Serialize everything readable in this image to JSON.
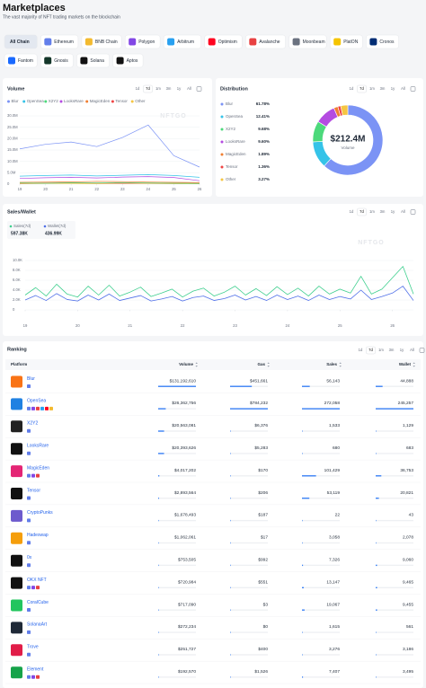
{
  "header": {
    "title": "Marketplaces",
    "subtitle": "The vast majority of NFT trading markets on the blockchain"
  },
  "chains": [
    "All Chain",
    "Ethereum",
    "BNB Chain",
    "Polygon",
    "Arbitrum",
    "Optimism",
    "Avalanche",
    "Moonbeam",
    "PlatON",
    "Cronos",
    "Fantom",
    "Gnosis",
    "Solana",
    "Aptos"
  ],
  "time_ranges": [
    "1d",
    "7d",
    "1m",
    "3m",
    "1y",
    "All"
  ],
  "watermark": "NFTGO",
  "chart_data": [
    {
      "type": "line",
      "title": "Volume",
      "x": [
        19,
        20,
        21,
        22,
        23,
        24,
        25,
        26
      ],
      "xlim": [
        19,
        26
      ],
      "xticks": [
        19,
        20,
        21,
        22,
        23,
        24,
        25,
        26
      ],
      "ylim": [
        0,
        30000000
      ],
      "yticks": [
        0,
        {
          "value": 5000000,
          "label": "5.0M"
        },
        {
          "value": 10000000,
          "label": "10.0M"
        },
        {
          "value": 15000000,
          "label": "15.0M"
        },
        {
          "value": 20000000,
          "label": "20.0M"
        },
        {
          "value": 25000000,
          "label": "25.0M"
        },
        {
          "value": 30000000,
          "label": "30.0M"
        }
      ],
      "series": [
        {
          "name": "Blur",
          "color": "#7b93f5",
          "values": [
            15500000,
            17500000,
            18500000,
            16500000,
            20500000,
            26000000,
            12500000,
            7500000
          ]
        },
        {
          "name": "OpenSea",
          "color": "#35c3e8",
          "values": [
            3500000,
            3800000,
            4000000,
            3600000,
            3900000,
            4200000,
            3800000,
            3000000
          ]
        },
        {
          "name": "X2Y2",
          "color": "#4cd97b",
          "values": [
            500000,
            400000,
            600000,
            500000,
            700000,
            500000,
            400000,
            300000
          ]
        },
        {
          "name": "LooksRare",
          "color": "#b44be1",
          "values": [
            2500000,
            2800000,
            3000000,
            2700000,
            3100000,
            3300000,
            2900000,
            1500000
          ]
        },
        {
          "name": "MagicEden",
          "color": "#f07f32",
          "values": [
            800000,
            900000,
            1000000,
            1200000,
            1100000,
            900000,
            800000,
            700000
          ]
        },
        {
          "name": "Tensor",
          "color": "#ef4444",
          "values": [
            400000,
            500000,
            600000,
            500000,
            400000,
            500000,
            400000,
            300000
          ]
        },
        {
          "name": "Other",
          "color": "#f5c542",
          "values": [
            200000,
            300000,
            300000,
            200000,
            300000,
            300000,
            200000,
            200000
          ]
        }
      ]
    },
    {
      "type": "pie",
      "title": "Distribution",
      "categories": [
        "Blur",
        "OpenSea",
        "X2Y2",
        "LooksRare",
        "MagicEden",
        "Tensor",
        "Other"
      ],
      "values": [
        61.78,
        12.41,
        9.68,
        9.6,
        1.89,
        1.36,
        3.27
      ],
      "value_labels": [
        "61.78%",
        "12.41%",
        "9.68%",
        "9.60%",
        "1.89%",
        "1.36%",
        "3.27%"
      ],
      "colors": [
        "#7b93f5",
        "#35c3e8",
        "#4cd97b",
        "#b44be1",
        "#f07f32",
        "#ef4444",
        "#f5c542"
      ],
      "center_value": "$212.4M",
      "center_label": "Volume"
    },
    {
      "type": "line",
      "title": "Sales/Wallet",
      "x": [
        19,
        19.2,
        19.4,
        19.6,
        19.8,
        20,
        20.2,
        20.4,
        20.6,
        20.8,
        21,
        21.2,
        21.4,
        21.6,
        21.8,
        22,
        22.2,
        22.4,
        22.6,
        22.8,
        23,
        23.2,
        23.4,
        23.6,
        23.8,
        24,
        24.2,
        24.4,
        24.6,
        24.8,
        25,
        25.2,
        25.4,
        25.6,
        25.8,
        26,
        26.2,
        26.4
      ],
      "xlim": [
        19,
        26.4
      ],
      "xticks": [
        19,
        20,
        21,
        22,
        23,
        24,
        25,
        26
      ],
      "ylim": [
        0,
        10000
      ],
      "yticks": [
        0,
        {
          "value": 2000,
          "label": "2.0K"
        },
        {
          "value": 4000,
          "label": "4.0K"
        },
        {
          "value": 6000,
          "label": "6.0K"
        },
        {
          "value": 8000,
          "label": "8.0K"
        },
        {
          "value": 10000,
          "label": "10.0K"
        }
      ],
      "series": [
        {
          "name": "Sales(7d)",
          "total": "597.38K",
          "color": "#3ecf8e",
          "values": [
            3000,
            4500,
            2800,
            5200,
            3200,
            2600,
            4800,
            3000,
            5000,
            2800,
            3600,
            4600,
            2700,
            3400,
            4200,
            2600,
            3800,
            4400,
            2800,
            3600,
            4800,
            3000,
            4300,
            2900,
            4700,
            3100,
            4400,
            2800,
            4800,
            3200,
            4200,
            3400,
            6800,
            3200,
            4200,
            6500,
            8800,
            3200
          ]
        },
        {
          "name": "Wallet(7d)",
          "total": "436.99K",
          "color": "#4f6fe8",
          "values": [
            2000,
            2900,
            1900,
            3300,
            2100,
            1800,
            3000,
            2000,
            3200,
            1900,
            2400,
            2900,
            1800,
            2200,
            2700,
            1800,
            2500,
            2800,
            1900,
            2300,
            3000,
            2000,
            2700,
            1900,
            3000,
            2100,
            2800,
            1900,
            3000,
            2100,
            2700,
            2200,
            4000,
            2100,
            2700,
            3400,
            4800,
            1900
          ]
        }
      ]
    }
  ],
  "ranking": {
    "title": "Ranking",
    "columns": [
      "Platform",
      "Volume",
      "Gas",
      "Sales",
      "Wallet"
    ],
    "rows": [
      {
        "name": "Blur",
        "volume": {
          "value": 131192610,
          "label": "$131,192,610"
        },
        "gas": {
          "value": 451661,
          "label": "$451,661"
        },
        "sales": {
          "value": 56143,
          "label": "56,143"
        },
        "wallet": {
          "value": 44888,
          "label": "44,888"
        }
      },
      {
        "name": "OpenSea",
        "volume": {
          "value": 26362756,
          "label": "$26,362,756"
        },
        "gas": {
          "value": 784232,
          "label": "$784,232"
        },
        "sales": {
          "value": 272058,
          "label": "272,058"
        },
        "wallet": {
          "value": 245257,
          "label": "245,257"
        }
      },
      {
        "name": "X2Y2",
        "volume": {
          "value": 20563081,
          "label": "$20,563,081"
        },
        "gas": {
          "value": 6376,
          "label": "$6,376"
        },
        "sales": {
          "value": 1533,
          "label": "1,533"
        },
        "wallet": {
          "value": 1129,
          "label": "1,129"
        }
      },
      {
        "name": "LooksRare",
        "volume": {
          "value": 20393626,
          "label": "$20,393,626"
        },
        "gas": {
          "value": 5283,
          "label": "$5,283"
        },
        "sales": 680,
        "wallet": 683
      },
      {
        "name": "MagicEden",
        "volume": {
          "value": 4017202,
          "label": "$4,017,202"
        },
        "gas": {
          "value": 170,
          "label": "$170"
        },
        "sales": {
          "value": 101429,
          "label": "101,429"
        },
        "wallet": {
          "value": 36753,
          "label": "36,753"
        }
      },
      {
        "name": "Tensor",
        "volume": {
          "value": 2893564,
          "label": "$2,893,564"
        },
        "gas": {
          "value": 206,
          "label": "$206"
        },
        "sales": {
          "value": 53119,
          "label": "53,119"
        },
        "wallet": {
          "value": 20821,
          "label": "20,821"
        }
      },
      {
        "name": "CryptoPunks",
        "volume": {
          "value": 1678493,
          "label": "$1,678,493"
        },
        "gas": {
          "value": 187,
          "label": "$187"
        },
        "sales": 22,
        "wallet": 43
      },
      {
        "name": "Hadeswap",
        "volume": {
          "value": 1062061,
          "label": "$1,062,061"
        },
        "gas": {
          "value": 17,
          "label": "$17"
        },
        "sales": {
          "value": 3058,
          "label": "3,058"
        },
        "wallet": {
          "value": 2078,
          "label": "2,078"
        }
      },
      {
        "name": "0x",
        "volume": {
          "value": 753505,
          "label": "$753,505"
        },
        "gas": {
          "value": 992,
          "label": "$992"
        },
        "sales": {
          "value": 7326,
          "label": "7,326"
        },
        "wallet": {
          "value": 9060,
          "label": "9,060"
        }
      },
      {
        "name": "OKX NFT",
        "volume": {
          "value": 720984,
          "label": "$720,984"
        },
        "gas": {
          "value": 551,
          "label": "$551"
        },
        "sales": {
          "value": 13147,
          "label": "13,147"
        },
        "wallet": {
          "value": 9465,
          "label": "9,465"
        }
      },
      {
        "name": "CoralCube",
        "volume": {
          "value": 717090,
          "label": "$717,090"
        },
        "gas": {
          "value": 3,
          "label": "$3"
        },
        "sales": {
          "value": 19067,
          "label": "19,067"
        },
        "wallet": {
          "value": 9455,
          "label": "9,455"
        }
      },
      {
        "name": "SolanaArt",
        "volume": {
          "value": 272234,
          "label": "$272,234"
        },
        "gas": {
          "value": 0,
          "label": "$0"
        },
        "sales": {
          "value": 1615,
          "label": "1,615"
        },
        "wallet": 561
      },
      {
        "name": "Trove",
        "volume": {
          "value": 251727,
          "label": "$251,727"
        },
        "gas": {
          "value": 400,
          "label": "$400"
        },
        "sales": {
          "value": 3276,
          "label": "3,276"
        },
        "wallet": {
          "value": 3186,
          "label": "3,186"
        }
      },
      {
        "name": "Element",
        "volume": {
          "value": 192570,
          "label": "$192,570"
        },
        "gas": {
          "value": 1526,
          "label": "$1,526"
        },
        "sales": {
          "value": 7407,
          "label": "7,407"
        },
        "wallet": {
          "value": 3495,
          "label": "3,495"
        }
      }
    ]
  }
}
